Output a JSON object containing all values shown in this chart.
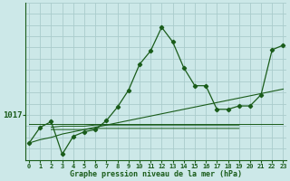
{
  "background_color": "#cce8e8",
  "plot_bg_color": "#cce8e8",
  "grid_color": "#aacccc",
  "line_color": "#1a5c1a",
  "xlabel": "Graphe pression niveau de la mer (hPa)",
  "ytick_val": 1017,
  "xlim_min": -0.3,
  "xlim_max": 23.3,
  "ylim_min": 1013.0,
  "ylim_max": 1027.0,
  "series1_x": [
    0,
    1,
    2,
    3,
    4,
    5,
    6,
    7,
    8,
    9,
    10,
    11,
    12,
    13,
    14,
    15,
    16,
    17,
    18,
    19,
    20,
    21,
    22,
    23
  ],
  "series1_y": [
    1014.5,
    1015.9,
    1016.4,
    1013.5,
    1015.1,
    1015.5,
    1015.7,
    1016.5,
    1017.7,
    1019.2,
    1021.5,
    1022.7,
    1024.8,
    1023.5,
    1021.2,
    1019.6,
    1019.6,
    1017.5,
    1017.5,
    1017.8,
    1017.8,
    1018.8,
    1022.8,
    1023.2
  ],
  "series2_x": [
    0,
    1,
    2,
    3,
    4,
    5,
    6,
    7,
    8,
    9,
    10,
    11,
    12,
    13,
    14,
    15,
    16,
    17,
    18,
    19,
    20,
    21,
    22,
    23
  ],
  "series2_y": [
    1014.5,
    1014.8,
    1015.0,
    1015.3,
    1015.5,
    1015.7,
    1015.9,
    1016.1,
    1016.3,
    1016.5,
    1016.7,
    1016.9,
    1017.1,
    1017.3,
    1017.5,
    1017.7,
    1017.9,
    1018.1,
    1018.3,
    1018.5,
    1018.7,
    1018.9,
    1019.1,
    1019.3
  ],
  "series3_x": [
    0,
    2,
    3,
    4,
    5,
    6,
    7,
    8,
    9,
    10,
    11,
    12,
    13,
    14,
    15,
    16,
    17,
    18,
    19,
    20,
    21,
    22,
    23
  ],
  "series3_y": [
    1016.2,
    1016.2,
    1016.2,
    1016.2,
    1016.2,
    1016.2,
    1016.2,
    1016.2,
    1016.2,
    1016.2,
    1016.2,
    1016.2,
    1016.2,
    1016.2,
    1016.2,
    1016.2,
    1016.2,
    1016.2,
    1016.2,
    1016.2,
    1016.2,
    1016.2,
    1016.2
  ],
  "series4_x": [
    2,
    3,
    4,
    5,
    6,
    7,
    8,
    9,
    10,
    11,
    12,
    13,
    14,
    15,
    16,
    17,
    18,
    19
  ],
  "series4_y": [
    1015.9,
    1016.0,
    1016.0,
    1016.0,
    1016.1,
    1016.1,
    1016.1,
    1016.1,
    1016.1,
    1016.1,
    1016.1,
    1016.1,
    1016.1,
    1016.1,
    1016.1,
    1016.1,
    1016.1,
    1016.1
  ],
  "series5_x": [
    2,
    3,
    4,
    5,
    6,
    7,
    8,
    9,
    10,
    11,
    12,
    13,
    14,
    15,
    16,
    17,
    18,
    19
  ],
  "series5_y": [
    1015.7,
    1015.7,
    1015.7,
    1015.7,
    1015.8,
    1015.8,
    1015.8,
    1015.8,
    1015.8,
    1015.8,
    1015.8,
    1015.8,
    1015.8,
    1015.8,
    1015.8,
    1015.8,
    1015.8,
    1015.8
  ]
}
